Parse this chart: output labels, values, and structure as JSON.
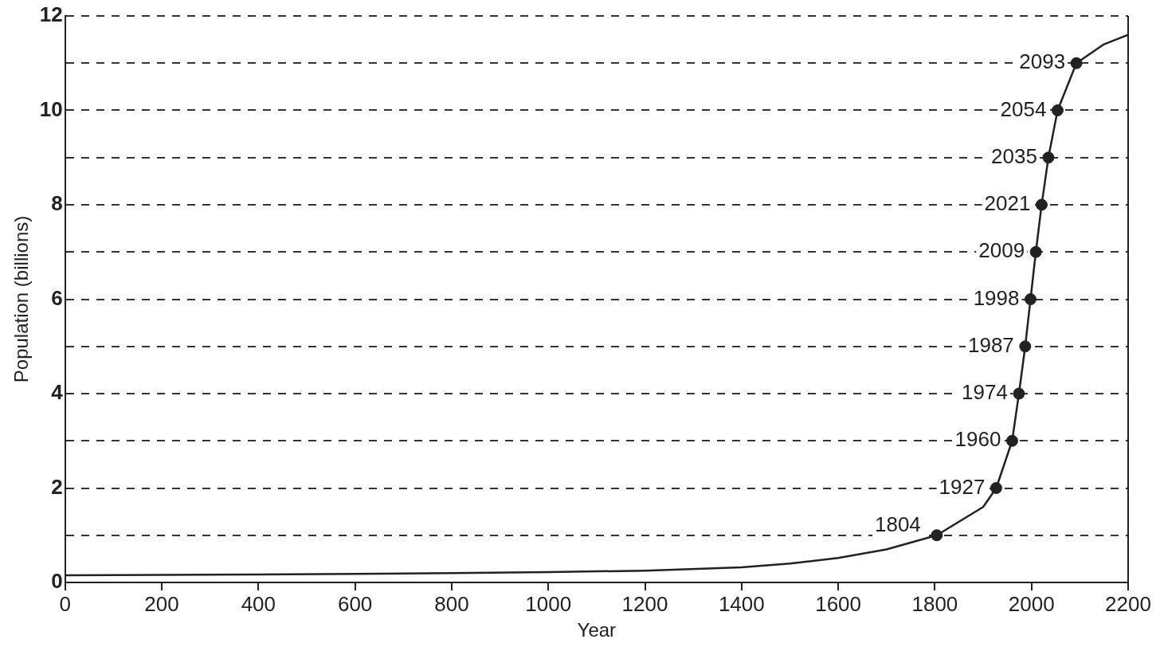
{
  "chart_data": {
    "type": "line",
    "xlabel": "Year",
    "ylabel": "Population (billions)",
    "xlim": [
      0,
      2200
    ],
    "xticks": [
      0,
      200,
      400,
      600,
      800,
      1000,
      1200,
      1400,
      1600,
      1800,
      2000,
      2200
    ],
    "ylim": [
      0,
      12
    ],
    "yticks": [
      0,
      {
        "value": 1,
        "label": null
      },
      2,
      {
        "value": 3,
        "label": null
      },
      4,
      {
        "value": 5,
        "label": null
      },
      6,
      {
        "value": 7,
        "label": null
      },
      8,
      {
        "value": 9,
        "label": null
      },
      10,
      {
        "value": 11,
        "label": null
      },
      12
    ],
    "grid": "y",
    "legend": false,
    "annotations": [
      {
        "text": "1804",
        "x": 1804,
        "y": 1
      },
      {
        "text": "1927",
        "x": 1927,
        "y": 2
      },
      {
        "text": "1960",
        "x": 1960,
        "y": 3
      },
      {
        "text": "1974",
        "x": 1974,
        "y": 4
      },
      {
        "text": "1987",
        "x": 1987,
        "y": 5
      },
      {
        "text": "1998",
        "x": 1998,
        "y": 6
      },
      {
        "text": "2009",
        "x": 2009,
        "y": 7
      },
      {
        "text": "2021",
        "x": 2021,
        "y": 8
      },
      {
        "text": "2035",
        "x": 2035,
        "y": 9
      },
      {
        "text": "2054",
        "x": 2054,
        "y": 10
      },
      {
        "text": "2093",
        "x": 2093,
        "y": 11
      }
    ],
    "series": [
      {
        "color": "#222222",
        "marker": "none",
        "x": [
          0,
          200,
          400,
          600,
          800,
          1000,
          1200,
          1400,
          1500,
          1600,
          1700,
          1804,
          1900,
          1927,
          1960,
          1974,
          1987,
          1998,
          2009,
          2021,
          2035,
          2054,
          2093,
          2150,
          2200
        ],
        "values": [
          0.15,
          0.16,
          0.17,
          0.18,
          0.2,
          0.22,
          0.25,
          0.32,
          0.4,
          0.52,
          0.7,
          1,
          1.6,
          2,
          3,
          4,
          5,
          6,
          7,
          8,
          9,
          10,
          11,
          11.4,
          11.6
        ]
      },
      {
        "type": "scatter",
        "color": "#222222",
        "marker": "circle",
        "x": [
          1804,
          1927,
          1960,
          1974,
          1987,
          1998,
          2009,
          2021,
          2035,
          2054,
          2093
        ],
        "values": [
          1,
          2,
          3,
          4,
          5,
          6,
          7,
          8,
          9,
          10,
          11
        ]
      }
    ]
  }
}
